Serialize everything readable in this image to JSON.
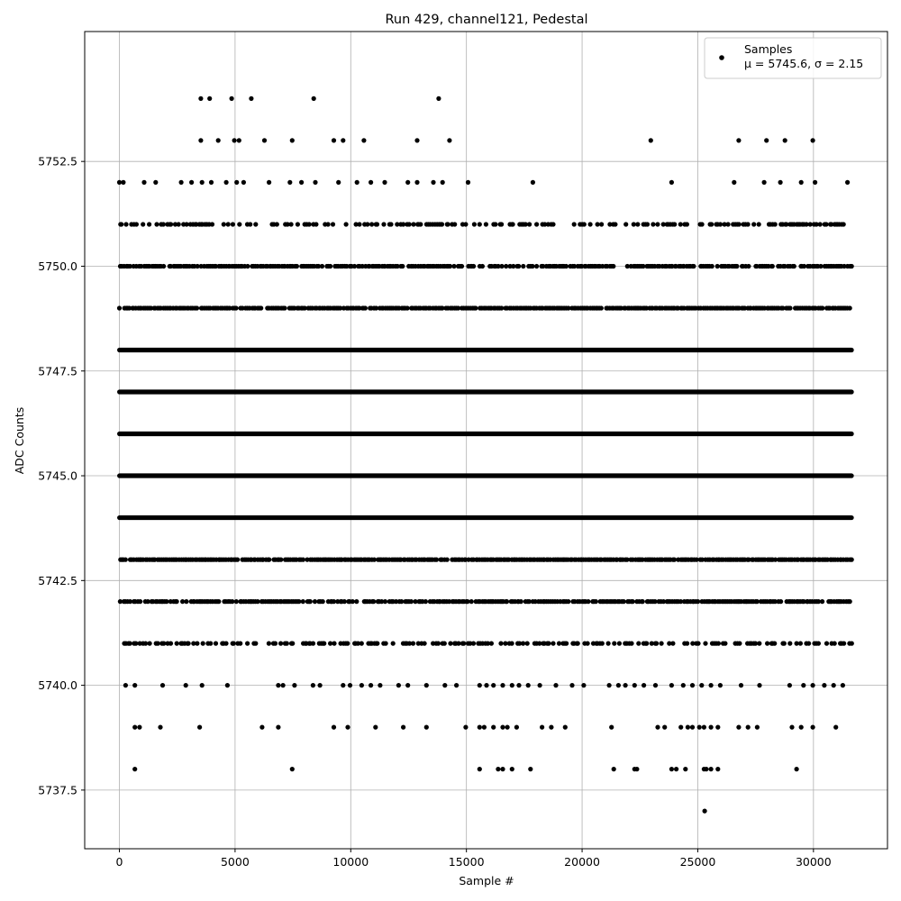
{
  "chart_data": {
    "type": "scatter",
    "title": "Run 429, channel121, Pedestal",
    "xlabel": "Sample #",
    "ylabel": "ADC Counts",
    "xlim": [
      -1500,
      33200
    ],
    "ylim": [
      5736.1,
      5755.6
    ],
    "xticks": [
      0,
      5000,
      10000,
      15000,
      20000,
      25000,
      30000
    ],
    "xtick_labels": [
      "0",
      "5000",
      "10000",
      "15000",
      "20000",
      "25000",
      "30000"
    ],
    "yticks": [
      5737.5,
      5740.0,
      5742.5,
      5745.0,
      5747.5,
      5750.0,
      5752.5
    ],
    "ytick_labels": [
      "5737.5",
      "5740.0",
      "5742.5",
      "5745.0",
      "5747.5",
      "5750.0",
      "5752.5"
    ],
    "grid": true,
    "legend": {
      "placement": "top-right",
      "series_name": "Samples",
      "stats": "μ = 5745.6, σ = 2.15"
    },
    "series": [
      {
        "name": "Samples",
        "color": "#000000",
        "sample_range": [
          0,
          31650
        ],
        "levels": [
          {
            "y": 5754,
            "x": [
              3520,
              3900,
              4850,
              5700,
              8400,
              13800
            ]
          },
          {
            "y": 5753,
            "x": [
              3520,
              4270,
              4970,
              5170,
              6270,
              7470,
              9270,
              9670,
              10570,
              12870,
              14270,
              22970,
              26770,
              27970,
              28770,
              29970
            ]
          },
          {
            "y": 5752,
            "x": [
              0,
              170,
              1070,
              1570,
              2670,
              3120,
              3570,
              3970,
              4620,
              5070,
              5370,
              6470,
              7370,
              7870,
              8470,
              9470,
              10270,
              10870,
              11470,
              12470,
              12870,
              13570,
              13970,
              15070,
              17870,
              23870,
              26570,
              27870,
              28570,
              29470,
              30070,
              31470
            ]
          },
          {
            "y": 5737,
            "x": [
              25300
            ]
          },
          {
            "y": 5738,
            "x": [
              670,
              7470,
              15570,
              16370,
              16570,
              16970,
              17770,
              21370,
              22270,
              22370,
              23870,
              24070,
              24470,
              25270,
              25370,
              25570,
              25870,
              29270
            ]
          },
          {
            "y": 5739,
            "x": [
              670,
              870,
              1770,
              3470,
              6170,
              6870,
              9270,
              9870,
              11070,
              12270,
              13270,
              14970,
              15570,
              15770,
              16170,
              16570,
              16770,
              17170,
              18270,
              18670,
              19270,
              21270,
              23270,
              23570,
              24270,
              24570,
              24770,
              25070,
              25270,
              25570,
              25870,
              26770,
              27170,
              27570,
              29070,
              29470,
              29970,
              30970
            ]
          },
          {
            "y": 5740,
            "x": [
              270,
              670,
              1870,
              2870,
              3570,
              4670,
              6870,
              7070,
              7570,
              8370,
              8670,
              9670,
              9970,
              10470,
              10870,
              11270,
              12070,
              12470,
              13270,
              14070,
              14570,
              15570,
              15870,
              16170,
              16570,
              16970,
              17270,
              17670,
              18170,
              18870,
              19570,
              20070,
              21170,
              21570,
              21870,
              22270,
              22670,
              23170,
              23870,
              24370,
              24770,
              25170,
              25570,
              25970,
              26870,
              27670,
              28970,
              29570,
              29970,
              30470,
              30870,
              31270
            ]
          },
          {
            "y": 5741,
            "levels_density": 0.55
          },
          {
            "y": 5742,
            "levels_density": 0.85
          },
          {
            "y": 5743,
            "levels_density": 0.95
          },
          {
            "y": 5744,
            "levels_density": 1.0
          },
          {
            "y": 5745,
            "levels_density": 1.0
          },
          {
            "y": 5746,
            "levels_density": 1.0
          },
          {
            "y": 5747,
            "levels_density": 1.0
          },
          {
            "y": 5748,
            "levels_density": 1.0
          },
          {
            "y": 5749,
            "levels_density": 0.95
          },
          {
            "y": 5750,
            "levels_density": 0.8
          },
          {
            "y": 5751,
            "levels_density": 0.45
          }
        ]
      }
    ]
  }
}
